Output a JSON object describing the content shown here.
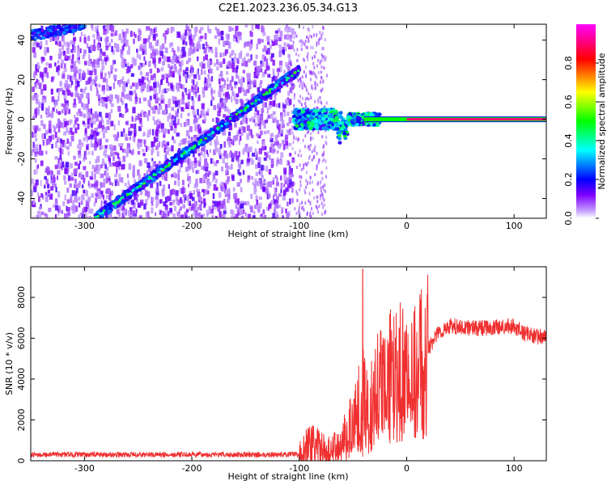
{
  "title": "C2E1.2023.236.05.34.G13",
  "chart_data": [
    {
      "type": "heatmap",
      "xlabel": "Height of straight line (km)",
      "ylabel": "Frequency (Hz)",
      "xlim": [
        -350,
        130
      ],
      "ylim": [
        -50,
        48
      ],
      "xticks": [
        -300,
        -200,
        -100,
        0,
        100
      ],
      "yticks": [
        -40,
        -20,
        0,
        20,
        40
      ],
      "colorbar": {
        "label": "Normalized spectral amplitude",
        "range": [
          0,
          1
        ],
        "ticks": [
          "0.0",
          "0.2",
          "0.4",
          "0.6",
          "0.8"
        ],
        "tick_values": [
          0.0,
          0.2,
          0.4,
          0.6,
          0.8
        ],
        "colors": [
          "#ffffff",
          "#7f00ff",
          "#0000ff",
          "#00ffff",
          "#00ff00",
          "#ffff00",
          "#ff0000",
          "#ff00ff"
        ]
      },
      "features": {
        "noise_region_x": [
          -350,
          -107
        ],
        "main_trace": {
          "x": [
            -290,
            -100
          ],
          "y": [
            -50,
            25
          ]
        },
        "upper_trace": {
          "x": [
            -350,
            -300
          ],
          "y": [
            42,
            48
          ]
        },
        "scatter_region_x": [
          -107,
          -75
        ],
        "doppler_line": {
          "x": [
            -70,
            130
          ],
          "y": 0,
          "peak_amplitude": 0.9
        }
      }
    },
    {
      "type": "line",
      "xlabel": "Height of straight line (km)",
      "ylabel": "SNR (10 * v/v)",
      "xlim": [
        -350,
        130
      ],
      "ylim": [
        0,
        9500
      ],
      "xticks": [
        -300,
        -200,
        -100,
        0,
        100
      ],
      "yticks": [
        0,
        2000,
        4000,
        6000,
        8000
      ],
      "color": "#f03030",
      "series": [
        {
          "x": [
            -350,
            -100,
            -90,
            -80,
            -70,
            -60,
            -50,
            -45,
            -40,
            -35,
            -30,
            -20,
            -10,
            0,
            10,
            20,
            30,
            40,
            60,
            80,
            100,
            110,
            130
          ],
          "y": [
            300,
            300,
            800,
            600,
            400,
            900,
            1800,
            2500,
            3000,
            2800,
            3200,
            4000,
            4500,
            4000,
            4300,
            5500,
            6300,
            6600,
            6500,
            6500,
            6600,
            6200,
            6000
          ]
        }
      ],
      "spike": {
        "x": -41,
        "y": 9400
      }
    }
  ]
}
